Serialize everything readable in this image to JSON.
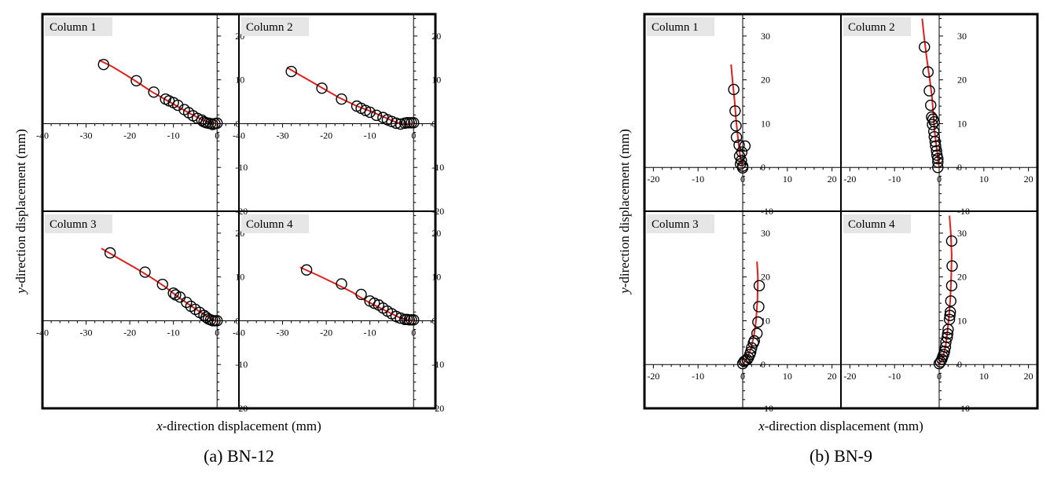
{
  "chart_data": [
    {
      "type": "scatter",
      "caption": "(a) BN-12",
      "xlabel_prefix": "x",
      "xlabel_rest": "-direction displacement (mm)",
      "ylabel_prefix": "y",
      "ylabel_rest": "-direction displacement (mm)",
      "xlim": [
        -40,
        5
      ],
      "ylim": [
        -20,
        25
      ],
      "xticks": [
        -40,
        -30,
        -20,
        -10,
        0
      ],
      "yticks": [
        -20,
        -10,
        0,
        10,
        20
      ],
      "colors": {
        "line": "#e0201b",
        "marker": "#000000",
        "frame": "#000000",
        "label_bg": "#e6e6e6"
      },
      "panels": [
        {
          "label": "Column 1",
          "line": [
            [
              -27,
              14.5
            ],
            [
              -24,
              13
            ],
            [
              -21,
              11.2
            ],
            [
              -18,
              9.3
            ],
            [
              -15,
              7.3
            ],
            [
              -12,
              5.6
            ],
            [
              -9,
              3.9
            ],
            [
              -6,
              2.2
            ],
            [
              -3,
              0.7
            ],
            [
              -1,
              0.1
            ],
            [
              0,
              0
            ]
          ],
          "points": [
            [
              -26,
              13.5
            ],
            [
              -18.5,
              9.8
            ],
            [
              -14.5,
              7.2
            ],
            [
              -11.8,
              5.6
            ],
            [
              -11,
              5.2
            ],
            [
              -10,
              4.8
            ],
            [
              -9,
              4.2
            ],
            [
              -7.5,
              3.2
            ],
            [
              -6.5,
              2.5
            ],
            [
              -5.5,
              1.8
            ],
            [
              -4.5,
              1.2
            ],
            [
              -3.5,
              0.8
            ],
            [
              -3,
              0.4
            ],
            [
              -2.5,
              0.2
            ],
            [
              -2,
              0.1
            ],
            [
              -1.5,
              0
            ],
            [
              -1,
              -0.2
            ],
            [
              -0.5,
              0
            ],
            [
              0,
              0.1
            ]
          ]
        },
        {
          "label": "Column 2",
          "line": [
            [
              -29,
              12.8
            ],
            [
              -25,
              10.5
            ],
            [
              -21,
              8.2
            ],
            [
              -17,
              5.9
            ],
            [
              -13,
              4
            ],
            [
              -10,
              2.9
            ],
            [
              -7,
              1.6
            ],
            [
              -4,
              0.3
            ],
            [
              -2,
              -0.2
            ],
            [
              0,
              0
            ]
          ],
          "points": [
            [
              -28,
              11.9
            ],
            [
              -21,
              8.1
            ],
            [
              -16.5,
              5.6
            ],
            [
              -13,
              4
            ],
            [
              -12,
              3.5
            ],
            [
              -11,
              3
            ],
            [
              -10,
              2.6
            ],
            [
              -8.5,
              1.9
            ],
            [
              -7,
              1.4
            ],
            [
              -6,
              0.9
            ],
            [
              -5,
              0.5
            ],
            [
              -4,
              0.1
            ],
            [
              -3,
              -0.1
            ],
            [
              -2,
              0.1
            ],
            [
              -1.5,
              0.2
            ],
            [
              -1,
              0.2
            ],
            [
              -0.5,
              0.2
            ],
            [
              0,
              0.2
            ]
          ]
        },
        {
          "label": "Column 3",
          "line": [
            [
              -26.5,
              16.5
            ],
            [
              -23,
              14.5
            ],
            [
              -19,
              12.2
            ],
            [
              -15,
              9.8
            ],
            [
              -12,
              7.8
            ],
            [
              -9,
              5.5
            ],
            [
              -6,
              3.4
            ],
            [
              -3,
              1.4
            ],
            [
              -1,
              0.2
            ],
            [
              0,
              0
            ]
          ],
          "points": [
            [
              -24.5,
              15.5
            ],
            [
              -16.5,
              11.1
            ],
            [
              -12.5,
              8.3
            ],
            [
              -10,
              6.3
            ],
            [
              -9.5,
              5.9
            ],
            [
              -8.5,
              5.4
            ],
            [
              -7,
              4.2
            ],
            [
              -6,
              3.3
            ],
            [
              -5,
              2.6
            ],
            [
              -4,
              1.9
            ],
            [
              -3,
              1.2
            ],
            [
              -2.5,
              0.8
            ],
            [
              -2,
              0.4
            ],
            [
              -1.5,
              0.2
            ],
            [
              -1,
              0
            ],
            [
              -0.5,
              0
            ],
            [
              0,
              0
            ]
          ]
        },
        {
          "label": "Column 4",
          "line": [
            [
              -26,
              12.2
            ],
            [
              -22,
              10.4
            ],
            [
              -18,
              8.5
            ],
            [
              -14,
              6.5
            ],
            [
              -11,
              4.6
            ],
            [
              -8,
              3.1
            ],
            [
              -5,
              1.6
            ],
            [
              -3,
              0.6
            ],
            [
              -1,
              0.1
            ],
            [
              0,
              0
            ]
          ],
          "points": [
            [
              -24.5,
              11.6
            ],
            [
              -16.5,
              8.4
            ],
            [
              -12,
              6
            ],
            [
              -10,
              4.5
            ],
            [
              -9,
              4
            ],
            [
              -8,
              3.6
            ],
            [
              -7,
              2.9
            ],
            [
              -6,
              2.2
            ],
            [
              -5,
              1.6
            ],
            [
              -4,
              1
            ],
            [
              -3,
              0.6
            ],
            [
              -2,
              0.3
            ],
            [
              -1.5,
              0.3
            ],
            [
              -1,
              0.2
            ],
            [
              -0.5,
              0.2
            ],
            [
              0,
              0.2
            ]
          ]
        }
      ]
    },
    {
      "type": "scatter",
      "caption": "(b) BN-9",
      "xlabel_prefix": "x",
      "xlabel_rest": "-direction displacement (mm)",
      "ylabel_prefix": "y",
      "ylabel_rest": "-direction displacement (mm)",
      "xlim": [
        -22,
        22
      ],
      "ylim": [
        -10,
        35
      ],
      "xticks": [
        -20,
        -10,
        0,
        10,
        20
      ],
      "yticks": [
        -10,
        0,
        10,
        20,
        30
      ],
      "colors": {
        "line": "#e0201b",
        "marker": "#000000",
        "frame": "#000000",
        "label_bg": "#e6e6e6"
      },
      "panels": [
        {
          "label": "Column 1",
          "line": [
            [
              -2.6,
              23.5
            ],
            [
              -2.2,
              19
            ],
            [
              -1.8,
              15
            ],
            [
              -1.5,
              11
            ],
            [
              -1.1,
              7
            ],
            [
              -0.7,
              3.5
            ],
            [
              -0.3,
              1
            ],
            [
              0,
              0
            ]
          ],
          "points": [
            [
              -2,
              17.8
            ],
            [
              -1.7,
              12.9
            ],
            [
              -1.5,
              9.5
            ],
            [
              -1.4,
              6.9
            ],
            [
              -0.8,
              5.1
            ],
            [
              0.5,
              4.9
            ],
            [
              -0.2,
              3.5
            ],
            [
              -0.7,
              2.6
            ],
            [
              -0.3,
              1.6
            ],
            [
              -0.5,
              0.8
            ],
            [
              0,
              0.3
            ],
            [
              0,
              -0.1
            ]
          ]
        },
        {
          "label": "Column 2",
          "line": [
            [
              -3.8,
              34
            ],
            [
              -3.4,
              30
            ],
            [
              -2.8,
              25
            ],
            [
              -2.1,
              20
            ],
            [
              -1.6,
              16
            ],
            [
              -1.3,
              12
            ],
            [
              -1,
              8
            ],
            [
              -0.5,
              4
            ],
            [
              -0.2,
              1.5
            ],
            [
              0,
              0
            ]
          ],
          "points": [
            [
              -3.3,
              27.5
            ],
            [
              -2.5,
              21.8
            ],
            [
              -2.2,
              17.5
            ],
            [
              -1.9,
              14.2
            ],
            [
              -1.7,
              11.5
            ],
            [
              -1.4,
              11
            ],
            [
              -1.1,
              10.4
            ],
            [
              -1.5,
              9.8
            ],
            [
              -1.2,
              8.2
            ],
            [
              -1.1,
              7
            ],
            [
              -0.9,
              5.9
            ],
            [
              -0.8,
              4.9
            ],
            [
              -0.6,
              3.8
            ],
            [
              -0.5,
              2.8
            ],
            [
              -0.3,
              2
            ],
            [
              -0.3,
              1.2
            ],
            [
              -0.3,
              0
            ]
          ]
        },
        {
          "label": "Column 3",
          "line": [
            [
              3.2,
              23.5
            ],
            [
              3.4,
              20
            ],
            [
              3.3,
              15
            ],
            [
              3,
              10
            ],
            [
              2.5,
              6.5
            ],
            [
              1.8,
              3.5
            ],
            [
              1,
              1.5
            ],
            [
              0.4,
              0.6
            ],
            [
              0,
              0
            ]
          ],
          "points": [
            [
              3.7,
              18
            ],
            [
              3.6,
              13.2
            ],
            [
              3.4,
              9.7
            ],
            [
              3.2,
              7.1
            ],
            [
              2.6,
              5.4
            ],
            [
              2.4,
              4.9
            ],
            [
              2,
              3.8
            ],
            [
              1.8,
              2.9
            ],
            [
              1.6,
              2.3
            ],
            [
              1.3,
              1.6
            ],
            [
              1,
              1.1
            ],
            [
              0.6,
              0.9
            ],
            [
              0.3,
              0.7
            ],
            [
              0,
              0.2
            ]
          ]
        },
        {
          "label": "Column 4",
          "line": [
            [
              2.3,
              34
            ],
            [
              2.6,
              30
            ],
            [
              2.8,
              25
            ],
            [
              2.7,
              20
            ],
            [
              2.5,
              15
            ],
            [
              2.2,
              11
            ],
            [
              1.8,
              7
            ],
            [
              1.4,
              4
            ],
            [
              0.9,
              2
            ],
            [
              0.4,
              0.7
            ],
            [
              0,
              0
            ]
          ],
          "points": [
            [
              2.8,
              28.2
            ],
            [
              2.9,
              22.5
            ],
            [
              2.8,
              18
            ],
            [
              2.6,
              14.5
            ],
            [
              2.5,
              12
            ],
            [
              2.4,
              11.2
            ],
            [
              2.3,
              10.3
            ],
            [
              2,
              8
            ],
            [
              1.9,
              7
            ],
            [
              1.8,
              6.2
            ],
            [
              1.5,
              5.1
            ],
            [
              1.4,
              4
            ],
            [
              1.2,
              3
            ],
            [
              1,
              2.3
            ],
            [
              0.8,
              1.8
            ],
            [
              0.6,
              1.2
            ],
            [
              0.3,
              0.6
            ],
            [
              0,
              0.2
            ]
          ]
        }
      ]
    }
  ]
}
